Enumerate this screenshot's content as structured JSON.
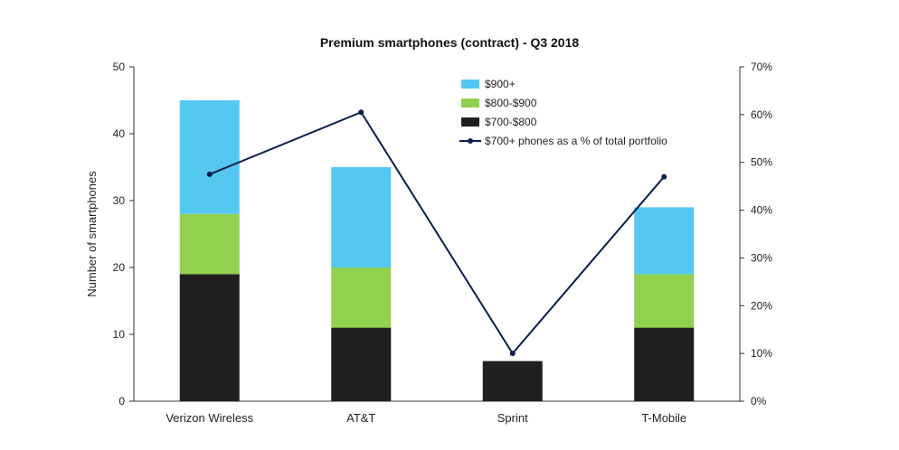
{
  "chart_data": {
    "type": "bar",
    "stacked": true,
    "title": "Premium smartphones (contract) - Q3 2018",
    "ylabel": "Number of smartphones",
    "ylim": [
      0,
      50
    ],
    "yticks": [
      0,
      10,
      20,
      30,
      40,
      50
    ],
    "y2lim": [
      0,
      70
    ],
    "y2ticks": [
      "0%",
      "10%",
      "20%",
      "30%",
      "40%",
      "50%",
      "60%",
      "70%"
    ],
    "categories": [
      "Verizon Wireless",
      "AT&T",
      "Sprint",
      "T-Mobile"
    ],
    "series": [
      {
        "name": "$700-$800",
        "values": [
          19,
          11,
          6,
          11
        ],
        "color": "#1f1f1f"
      },
      {
        "name": "$800-$900",
        "values": [
          9,
          9,
          0,
          8
        ],
        "color": "#92d050"
      },
      {
        "name": "$900+",
        "values": [
          17,
          15,
          0,
          10
        ],
        "color": "#55c8f2"
      }
    ],
    "line_series": {
      "name": "$700+ phones as a % of total portfolio",
      "axis": "secondary",
      "values": [
        47.5,
        60.5,
        10,
        47
      ],
      "color": "#0c1f4a"
    },
    "legend": {
      "position": "top-center",
      "order": [
        "$900+",
        "$800-$900",
        "$700-$800",
        "$700+ phones as a % of total portfolio"
      ]
    },
    "grid": false
  }
}
